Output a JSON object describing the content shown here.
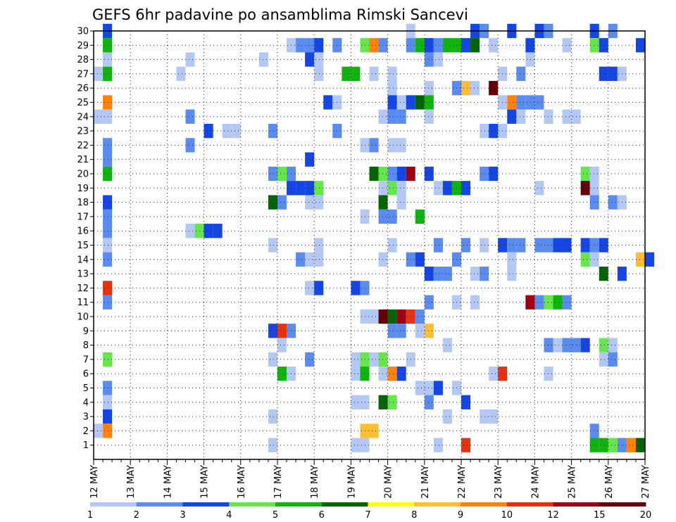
{
  "chart_data": {
    "type": "heatmap",
    "title": "GEFS 6hr padavine po ansamblima Rimski Sancevi",
    "xlabel": "",
    "ylabel": "",
    "x_ticks": [
      "12 MAY",
      "13 MAY",
      "14 MAY",
      "15 MAY",
      "16 MAY",
      "17 MAY",
      "18 MAY",
      "19 MAY",
      "20 MAY",
      "21 MAY",
      "22 MAY",
      "23 MAY",
      "24 MAY",
      "25 MAY",
      "26 MAY",
      "27 MAY"
    ],
    "y_ticks": [
      1,
      2,
      3,
      4,
      5,
      6,
      7,
      8,
      9,
      10,
      11,
      12,
      13,
      14,
      15,
      16,
      17,
      18,
      19,
      20,
      21,
      22,
      23,
      24,
      25,
      26,
      27,
      28,
      29,
      30
    ],
    "x_range_days": [
      0,
      15
    ],
    "y_range": [
      0,
      30
    ],
    "grid": true,
    "time_step_hours": 6,
    "colorbar": {
      "levels": [
        "1",
        "2",
        "3",
        "4",
        "5",
        "6",
        "7",
        "8",
        "9",
        "10",
        "12",
        "15",
        "20"
      ],
      "colors": [
        "#b4c8f5",
        "#5a8cf0",
        "#1446e6",
        "#66e64a",
        "#0fb40f",
        "#056405",
        "#ffff14",
        "#ffbe32",
        "#ff820a",
        "#e6320f",
        "#a00014",
        "#640005"
      ]
    },
    "cells": [
      [
        30,
        0.25,
        3
      ],
      [
        30,
        8.5,
        1
      ],
      [
        30,
        17,
        3
      ],
      [
        30,
        10.25,
        3
      ],
      [
        30,
        10.5,
        2
      ],
      [
        30,
        11.25,
        3
      ],
      [
        30,
        12,
        3
      ],
      [
        30,
        12.25,
        2
      ],
      [
        30,
        13.5,
        3
      ],
      [
        30,
        14,
        2
      ],
      [
        29,
        0.25,
        5
      ],
      [
        29,
        5.25,
        1
      ],
      [
        29,
        5.5,
        2
      ],
      [
        29,
        5.75,
        2
      ],
      [
        29,
        6,
        3
      ],
      [
        29,
        6.5,
        2
      ],
      [
        29,
        7.25,
        4
      ],
      [
        29,
        7.5,
        9
      ],
      [
        29,
        7.75,
        2
      ],
      [
        29,
        8.5,
        2
      ],
      [
        29,
        8.75,
        5
      ],
      [
        29,
        9,
        3
      ],
      [
        29,
        9.25,
        2
      ],
      [
        29,
        9.5,
        5
      ],
      [
        29,
        9.75,
        5
      ],
      [
        29,
        10,
        3
      ],
      [
        29,
        10.25,
        6
      ],
      [
        29,
        10.75,
        1
      ],
      [
        29,
        11.75,
        3
      ],
      [
        29,
        12.75,
        1
      ],
      [
        29,
        13.5,
        4
      ],
      [
        29,
        13.75,
        3
      ],
      [
        29,
        14.75,
        3
      ],
      [
        28,
        0.25,
        1
      ],
      [
        28,
        2.5,
        1
      ],
      [
        28,
        4.5,
        1
      ],
      [
        28,
        5.75,
        3
      ],
      [
        28,
        6,
        1
      ],
      [
        28,
        9,
        2
      ],
      [
        28,
        9.25,
        1
      ],
      [
        28,
        11.75,
        1
      ],
      [
        27,
        0,
        1
      ],
      [
        27,
        0.25,
        5
      ],
      [
        27,
        2.25,
        1
      ],
      [
        27,
        6,
        1
      ],
      [
        27,
        6.75,
        5
      ],
      [
        27,
        7,
        5
      ],
      [
        27,
        7.5,
        1
      ],
      [
        27,
        8,
        1
      ],
      [
        27,
        11,
        1
      ],
      [
        27,
        11.5,
        2
      ],
      [
        27,
        13.75,
        3
      ],
      [
        27,
        14,
        3
      ],
      [
        27,
        14.25,
        1
      ],
      [
        26,
        8,
        1
      ],
      [
        26,
        9,
        1
      ],
      [
        26,
        9.75,
        2
      ],
      [
        26,
        10,
        8
      ],
      [
        26,
        10.25,
        1
      ],
      [
        26,
        10.75,
        12
      ],
      [
        25,
        0.25,
        9
      ],
      [
        25,
        6.25,
        3
      ],
      [
        25,
        6.5,
        1
      ],
      [
        25,
        8,
        3
      ],
      [
        25,
        8.25,
        1
      ],
      [
        25,
        8.5,
        3
      ],
      [
        25,
        8.75,
        6
      ],
      [
        25,
        9,
        5
      ],
      [
        25,
        11,
        1
      ],
      [
        25,
        11.25,
        9
      ],
      [
        25,
        11.5,
        2
      ],
      [
        25,
        11.75,
        2
      ],
      [
        25,
        12,
        2
      ],
      [
        24,
        0,
        1
      ],
      [
        24,
        0.25,
        1
      ],
      [
        24,
        2.5,
        2
      ],
      [
        24,
        7.75,
        1
      ],
      [
        24,
        8,
        2
      ],
      [
        24,
        8.25,
        2
      ],
      [
        24,
        9,
        1
      ],
      [
        24,
        11.25,
        3
      ],
      [
        24,
        11.5,
        1
      ],
      [
        24,
        12.25,
        1
      ],
      [
        24,
        12.75,
        1
      ],
      [
        24,
        13,
        1
      ],
      [
        23,
        3,
        3
      ],
      [
        23,
        3.5,
        1
      ],
      [
        23,
        3.75,
        1
      ],
      [
        23,
        4.75,
        2
      ],
      [
        23,
        6.5,
        2
      ],
      [
        23,
        10.5,
        1
      ],
      [
        23,
        10.75,
        3
      ],
      [
        23,
        11,
        1
      ],
      [
        22,
        0.25,
        2
      ],
      [
        22,
        2.5,
        2
      ],
      [
        22,
        7.25,
        1
      ],
      [
        22,
        7.5,
        2
      ],
      [
        22,
        8,
        1
      ],
      [
        22,
        8.25,
        1
      ],
      [
        21,
        0.25,
        2
      ],
      [
        21,
        5.75,
        3
      ],
      [
        20,
        0.25,
        5
      ],
      [
        20,
        4.75,
        2
      ],
      [
        20,
        5,
        4
      ],
      [
        20,
        5.25,
        2
      ],
      [
        20,
        7.5,
        6
      ],
      [
        20,
        7.75,
        4
      ],
      [
        20,
        8,
        2
      ],
      [
        20,
        8.25,
        3
      ],
      [
        20,
        8.5,
        11
      ],
      [
        20,
        9,
        3
      ],
      [
        20,
        10.5,
        2
      ],
      [
        20,
        10.75,
        3
      ],
      [
        20,
        13.25,
        4
      ],
      [
        20,
        13.5,
        1
      ],
      [
        19,
        5.25,
        3
      ],
      [
        19,
        5.5,
        3
      ],
      [
        19,
        5.75,
        3
      ],
      [
        19,
        6,
        4
      ],
      [
        19,
        7.75,
        1
      ],
      [
        19,
        8,
        4
      ],
      [
        19,
        8.25,
        1
      ],
      [
        19,
        9.25,
        1
      ],
      [
        19,
        9.5,
        3
      ],
      [
        19,
        9.75,
        5
      ],
      [
        19,
        10,
        3
      ],
      [
        19,
        12,
        1
      ],
      [
        19,
        13.25,
        12
      ],
      [
        19,
        13.5,
        1
      ],
      [
        18,
        0.25,
        3
      ],
      [
        18,
        4.75,
        6
      ],
      [
        18,
        5,
        2
      ],
      [
        18,
        5.75,
        1
      ],
      [
        18,
        6,
        1
      ],
      [
        18,
        7.75,
        6
      ],
      [
        18,
        8.25,
        1
      ],
      [
        18,
        13.5,
        2
      ],
      [
        18,
        14,
        2
      ],
      [
        18,
        14.25,
        1
      ],
      [
        17,
        0.25,
        2
      ],
      [
        17,
        7.25,
        1
      ],
      [
        17,
        7.75,
        2
      ],
      [
        17,
        8,
        2
      ],
      [
        17,
        8.75,
        5
      ],
      [
        16,
        0.25,
        2
      ],
      [
        16,
        2.5,
        1
      ],
      [
        16,
        2.75,
        4
      ],
      [
        16,
        3,
        3
      ],
      [
        16,
        3.25,
        3
      ],
      [
        15,
        0.25,
        1
      ],
      [
        15,
        4.75,
        1
      ],
      [
        15,
        6,
        1
      ],
      [
        15,
        8,
        1
      ],
      [
        15,
        9.25,
        2
      ],
      [
        15,
        10,
        2
      ],
      [
        15,
        10.5,
        1
      ],
      [
        15,
        11,
        3
      ],
      [
        15,
        11.25,
        2
      ],
      [
        15,
        11.5,
        2
      ],
      [
        15,
        12,
        2
      ],
      [
        15,
        12.25,
        2
      ],
      [
        15,
        12.5,
        3
      ],
      [
        15,
        12.75,
        3
      ],
      [
        15,
        13.25,
        3
      ],
      [
        15,
        13.5,
        2
      ],
      [
        15,
        13.75,
        3
      ],
      [
        14,
        0.25,
        2
      ],
      [
        14,
        5.5,
        2
      ],
      [
        14,
        5.75,
        1
      ],
      [
        14,
        6,
        1
      ],
      [
        14,
        7.75,
        1
      ],
      [
        14,
        8.5,
        2
      ],
      [
        14,
        8.75,
        3
      ],
      [
        14,
        9.75,
        2
      ],
      [
        14,
        11.25,
        1
      ],
      [
        14,
        13.25,
        4
      ],
      [
        14,
        13.5,
        1
      ],
      [
        14,
        14.75,
        8
      ],
      [
        14,
        15,
        3
      ],
      [
        13,
        9,
        3
      ],
      [
        13,
        9.25,
        2
      ],
      [
        13,
        9.5,
        2
      ],
      [
        13,
        10.25,
        1
      ],
      [
        13,
        10.5,
        2
      ],
      [
        13,
        11.25,
        1
      ],
      [
        13,
        13.75,
        6
      ],
      [
        13,
        14.25,
        3
      ],
      [
        12,
        0.25,
        10
      ],
      [
        12,
        5.75,
        1
      ],
      [
        12,
        6,
        3
      ],
      [
        12,
        7,
        3
      ],
      [
        12,
        7.25,
        2
      ],
      [
        11,
        0.25,
        2
      ],
      [
        11,
        9,
        2
      ],
      [
        11,
        9.75,
        1
      ],
      [
        11,
        10.25,
        1
      ],
      [
        11,
        11.75,
        11
      ],
      [
        11,
        12,
        2
      ],
      [
        11,
        12.25,
        4
      ],
      [
        11,
        12.5,
        5
      ],
      [
        11,
        12.75,
        2
      ],
      [
        10,
        7.25,
        1
      ],
      [
        10,
        7.5,
        1
      ],
      [
        10,
        7.75,
        12
      ],
      [
        10,
        8,
        6
      ],
      [
        10,
        8.25,
        11
      ],
      [
        10,
        8.5,
        10
      ],
      [
        10,
        8.75,
        2
      ],
      [
        9,
        4.75,
        3
      ],
      [
        9,
        5,
        10
      ],
      [
        9,
        5.25,
        2
      ],
      [
        9,
        8,
        2
      ],
      [
        9,
        8.25,
        2
      ],
      [
        9,
        8.75,
        1
      ],
      [
        9,
        9,
        8
      ],
      [
        8,
        5,
        1
      ],
      [
        8,
        9.5,
        1
      ],
      [
        8,
        12.25,
        2
      ],
      [
        8,
        12.5,
        1
      ],
      [
        8,
        12.75,
        2
      ],
      [
        8,
        13,
        2
      ],
      [
        8,
        13.25,
        3
      ],
      [
        8,
        13.75,
        4
      ],
      [
        8,
        14,
        1
      ],
      [
        7,
        0.25,
        4
      ],
      [
        7,
        4.75,
        1
      ],
      [
        7,
        5.75,
        2
      ],
      [
        7,
        7,
        1
      ],
      [
        7,
        7.25,
        4
      ],
      [
        7,
        7.5,
        1
      ],
      [
        7,
        7.75,
        4
      ],
      [
        7,
        8.5,
        1
      ],
      [
        7,
        13.75,
        1
      ],
      [
        7,
        14,
        2
      ],
      [
        6,
        5,
        5
      ],
      [
        6,
        5.25,
        1
      ],
      [
        6,
        7,
        1
      ],
      [
        6,
        7.25,
        5
      ],
      [
        6,
        7.75,
        1
      ],
      [
        6,
        8,
        9
      ],
      [
        6,
        8.25,
        3
      ],
      [
        6,
        10.75,
        1
      ],
      [
        6,
        11,
        10
      ],
      [
        6,
        12.25,
        1
      ],
      [
        5,
        0.25,
        2
      ],
      [
        5,
        8.75,
        1
      ],
      [
        5,
        9,
        1
      ],
      [
        5,
        9.25,
        3
      ],
      [
        5,
        9.75,
        1
      ],
      [
        4,
        0.25,
        1
      ],
      [
        4,
        7,
        1
      ],
      [
        4,
        7.25,
        1
      ],
      [
        4,
        7.75,
        6
      ],
      [
        4,
        8,
        4
      ],
      [
        4,
        9,
        2
      ],
      [
        4,
        10,
        3
      ],
      [
        3,
        0.25,
        3
      ],
      [
        3,
        4.75,
        1
      ],
      [
        3,
        9.5,
        1
      ],
      [
        3,
        10.5,
        1
      ],
      [
        3,
        10.75,
        1
      ],
      [
        2,
        0,
        1
      ],
      [
        2,
        0.25,
        9
      ],
      [
        2,
        7.25,
        8
      ],
      [
        2,
        7.5,
        8
      ],
      [
        2,
        13.5,
        2
      ],
      [
        1,
        4.75,
        1
      ],
      [
        1,
        7,
        1
      ],
      [
        1,
        7.25,
        1
      ],
      [
        1,
        9.25,
        1
      ],
      [
        1,
        10,
        10
      ],
      [
        1,
        13.5,
        5
      ],
      [
        1,
        13.75,
        5
      ],
      [
        1,
        14,
        4
      ],
      [
        1,
        14.25,
        2
      ],
      [
        1,
        14.5,
        9
      ],
      [
        1,
        14.75,
        6
      ]
    ]
  }
}
